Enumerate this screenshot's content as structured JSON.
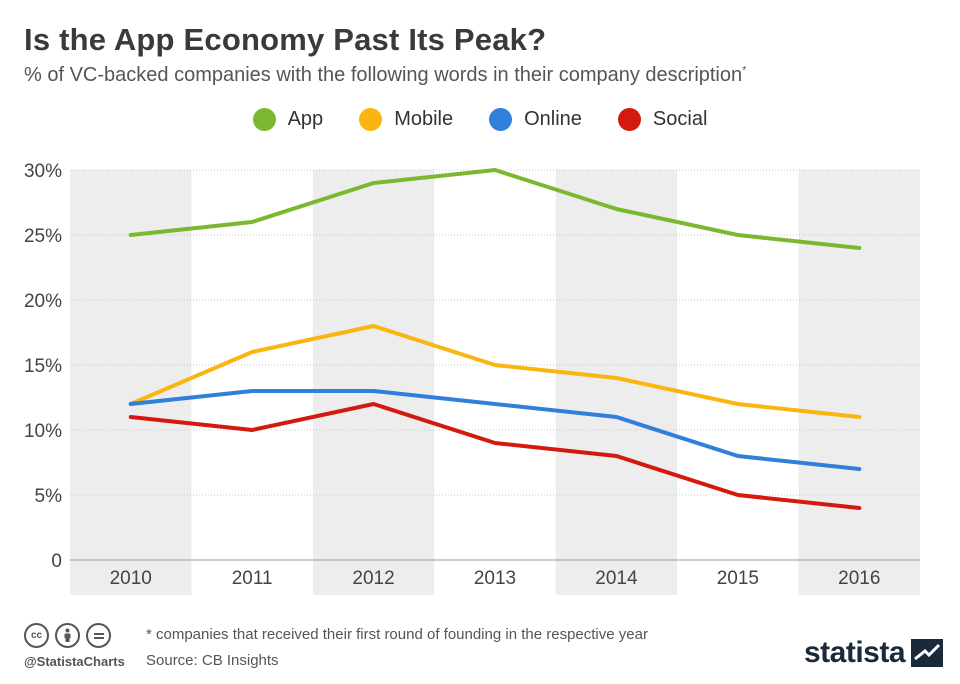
{
  "header": {
    "title": "Is the App Economy Past Its Peak?",
    "subtitle": "% of VC-backed companies with the following words in their company description",
    "subtitle_mark": "*"
  },
  "footer": {
    "footnote": "* companies that received their first round of founding in the respective year",
    "source": "Source: CB Insights",
    "handle": "@StatistaCharts",
    "brand": "statista",
    "license_icons": [
      "cc-icon",
      "by-icon",
      "nd-icon"
    ]
  },
  "colors": {
    "app": "#7cb82f",
    "mobile": "#fbb511",
    "online": "#2f7fdb",
    "social": "#d41a0f",
    "band": "#ededed"
  },
  "chart_data": {
    "type": "line",
    "title": "Is the App Economy Past Its Peak?",
    "subtitle": "% of VC-backed companies with the following words in their company description*",
    "x": [
      "2010",
      "2011",
      "2012",
      "2013",
      "2014",
      "2015",
      "2016"
    ],
    "ylim": [
      0,
      30
    ],
    "yticks": [
      "0",
      "5%",
      "10%",
      "15%",
      "20%",
      "25%",
      "30%"
    ],
    "ytick_values": [
      0,
      5,
      10,
      15,
      20,
      25,
      30
    ],
    "grid": true,
    "legend": "top-center",
    "series": [
      {
        "name": "App",
        "color": "#7cb82f",
        "values": [
          25,
          26,
          29,
          30,
          27,
          25,
          24
        ]
      },
      {
        "name": "Mobile",
        "color": "#fbb511",
        "values": [
          12,
          16,
          18,
          15,
          14,
          12,
          11
        ]
      },
      {
        "name": "Online",
        "color": "#2f7fdb",
        "values": [
          12,
          13,
          13,
          12,
          11,
          8,
          7
        ]
      },
      {
        "name": "Social",
        "color": "#d41a0f",
        "values": [
          11,
          10,
          12,
          9,
          8,
          5,
          4
        ]
      }
    ]
  }
}
